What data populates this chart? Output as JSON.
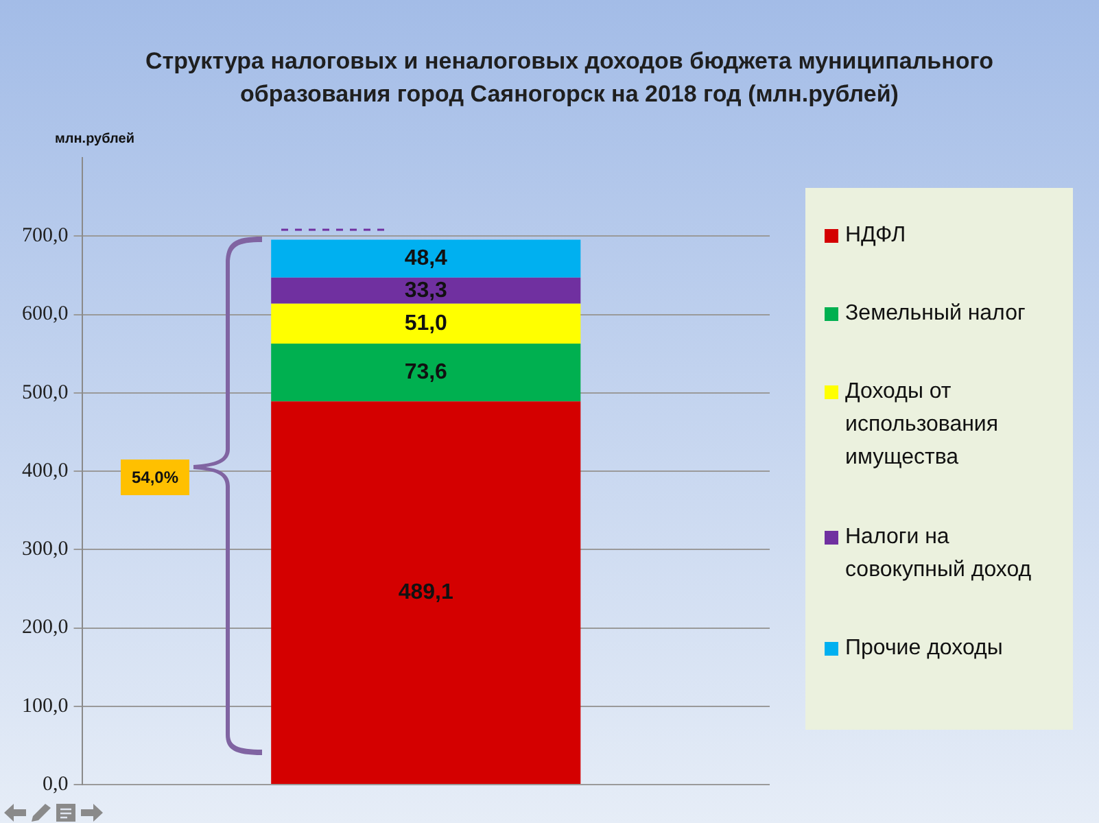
{
  "chart_data": {
    "type": "bar",
    "title": "Структура налоговых и неналоговых доходов бюджета муниципального образования город Саяногорск на 2018 год (млн.рублей)",
    "ylabel": "млн.рублей",
    "categories": [
      null
    ],
    "stacked": true,
    "series": [
      {
        "name": "НДФЛ",
        "color": "#d40000",
        "values": [
          489.1
        ],
        "value_labels": [
          "489,1"
        ]
      },
      {
        "name": "Земельный налог",
        "color": "#00b050",
        "values": [
          73.6
        ],
        "value_labels": [
          "73,6"
        ]
      },
      {
        "name": "Доходы от использования имущества",
        "color": "#ffff00",
        "values": [
          51.0
        ],
        "value_labels": [
          "51,0"
        ]
      },
      {
        "name": "Налоги на совокупный доход",
        "color": "#7030a0",
        "values": [
          33.3
        ],
        "value_labels": [
          "33,3"
        ]
      },
      {
        "name": "Прочие доходы",
        "color": "#00b0f0",
        "values": [
          48.4
        ],
        "value_labels": [
          "48,4"
        ]
      }
    ],
    "ylim": [
      0,
      800
    ],
    "yticks": [
      {
        "value": 0,
        "label": "0,0"
      },
      {
        "value": 100,
        "label": "100,0"
      },
      {
        "value": 200,
        "label": "200,0"
      },
      {
        "value": 300,
        "label": "300,0"
      },
      {
        "value": 400,
        "label": "400,0"
      },
      {
        "value": 500,
        "label": "500,0"
      },
      {
        "value": 600,
        "label": "600,0"
      },
      {
        "value": 700,
        "label": "700,0"
      }
    ],
    "grid": "y",
    "legend": "right",
    "annotations": [
      "54,0%"
    ]
  }
}
